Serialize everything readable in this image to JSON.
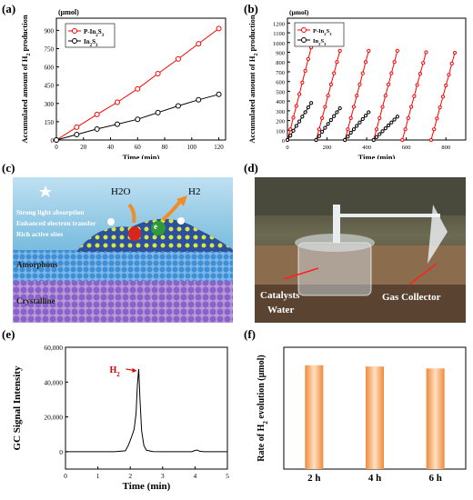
{
  "panels": {
    "a": "(a)",
    "b": "(b)",
    "c": "(c)",
    "d": "(d)",
    "e": "(e)",
    "f": "(f)"
  },
  "chart_data": [
    {
      "id": "a",
      "type": "line",
      "unit": "(μmol)",
      "xlabel": "Time (min)",
      "ylabel": "Accumulated amount of H2 production",
      "xlim": [
        0,
        125
      ],
      "ylim": [
        0,
        1000
      ],
      "xticks": [
        0,
        20,
        40,
        60,
        80,
        100,
        120
      ],
      "yticks": [
        0,
        150,
        300,
        450,
        600,
        750,
        900
      ],
      "legend_position": "top-left",
      "series": [
        {
          "name": "P-In2S3",
          "color": "#ff0000",
          "marker": "circle-open",
          "x": [
            0,
            15,
            30,
            45,
            60,
            75,
            90,
            105,
            120
          ],
          "y": [
            0,
            105,
            210,
            310,
            420,
            545,
            665,
            790,
            915
          ]
        },
        {
          "name": "In2S3",
          "color": "#000000",
          "marker": "circle-open",
          "x": [
            0,
            15,
            30,
            45,
            60,
            75,
            90,
            105,
            120
          ],
          "y": [
            0,
            45,
            90,
            130,
            170,
            225,
            280,
            330,
            375
          ]
        }
      ]
    },
    {
      "id": "b",
      "type": "line",
      "unit": "(μmol)",
      "xlabel": "Time (min)",
      "ylabel": "Accumulated amount of H2 production",
      "xlim": [
        0,
        900
      ],
      "ylim": [
        0,
        1250
      ],
      "xticks": [
        0,
        200,
        400,
        600,
        800
      ],
      "yticks": [
        0,
        100,
        200,
        300,
        400,
        500,
        600,
        700,
        800,
        900,
        1000,
        1100,
        1200
      ],
      "legend_position": "top-left",
      "series": [
        {
          "name": "P-In2S3",
          "color": "#ff0000",
          "cycles": [
            {
              "x": [
                0,
                15,
                30,
                45,
                60,
                75,
                90,
                105,
                120
              ],
              "y": [
                0,
                110,
                230,
                350,
                470,
                590,
                710,
                830,
                950
              ]
            },
            {
              "x": [
                145,
                160,
                175,
                190,
                205,
                220,
                235,
                250,
                265
              ],
              "y": [
                0,
                110,
                225,
                340,
                455,
                570,
                685,
                800,
                915
              ]
            },
            {
              "x": [
                290,
                305,
                320,
                335,
                350,
                365,
                380,
                395,
                410
              ],
              "y": [
                0,
                110,
                225,
                340,
                455,
                570,
                685,
                800,
                915
              ]
            },
            {
              "x": [
                435,
                450,
                465,
                480,
                495,
                510,
                525,
                540,
                555
              ],
              "y": [
                0,
                110,
                225,
                340,
                455,
                570,
                685,
                800,
                915
              ]
            },
            {
              "x": [
                580,
                595,
                610,
                625,
                640,
                655,
                670,
                685,
                700
              ],
              "y": [
                0,
                110,
                225,
                340,
                450,
                565,
                680,
                790,
                900
              ]
            },
            {
              "x": [
                725,
                740,
                755,
                770,
                785,
                800,
                815,
                830,
                845
              ],
              "y": [
                0,
                110,
                220,
                335,
                445,
                560,
                670,
                785,
                895
              ]
            }
          ]
        },
        {
          "name": "In2S3",
          "color": "#000000",
          "cycles": [
            {
              "x": [
                0,
                15,
                30,
                45,
                60,
                75,
                90,
                105,
                120
              ],
              "y": [
                0,
                45,
                95,
                145,
                190,
                240,
                285,
                335,
                380
              ]
            },
            {
              "x": [
                145,
                160,
                175,
                190,
                205,
                220,
                235,
                250,
                265
              ],
              "y": [
                0,
                40,
                85,
                125,
                165,
                205,
                245,
                285,
                325
              ]
            },
            {
              "x": [
                290,
                305,
                320,
                335,
                350,
                365,
                380,
                395,
                410
              ],
              "y": [
                0,
                35,
                75,
                110,
                145,
                180,
                215,
                250,
                285
              ]
            },
            {
              "x": [
                435,
                450,
                465,
                480,
                495,
                510,
                525,
                540,
                555
              ],
              "y": [
                0,
                30,
                60,
                90,
                120,
                150,
                180,
                210,
                240
              ]
            }
          ]
        }
      ]
    },
    {
      "id": "e",
      "type": "line",
      "xlabel": "Time (min)",
      "ylabel": "GC Signal Intensity",
      "xlim": [
        0,
        5
      ],
      "ylim": [
        -10000,
        60000
      ],
      "xticks": [
        0,
        1,
        2,
        3,
        4,
        5
      ],
      "yticks": [
        0,
        20000,
        40000,
        60000
      ],
      "ytick_labels": [
        "0",
        "20,000",
        "40,000",
        "60,000"
      ],
      "annotation": "H2",
      "series": [
        {
          "name": "",
          "color": "#000000",
          "x": [
            0,
            1.5,
            1.85,
            1.95,
            2.05,
            2.12,
            2.18,
            2.22,
            2.26,
            2.3,
            2.35,
            2.42,
            2.5,
            2.7,
            3.0,
            3.9,
            4.0,
            4.08,
            4.15,
            4.3,
            5.0
          ],
          "y": [
            0,
            0,
            500,
            4000,
            9000,
            13000,
            22000,
            38000,
            47500,
            30000,
            12000,
            3500,
            800,
            100,
            0,
            0,
            700,
            900,
            200,
            0,
            0
          ]
        }
      ]
    },
    {
      "id": "f",
      "type": "bar",
      "ylabel": "Rate of H2 evolution (μmol)",
      "categories": [
        "2 h",
        "4 h",
        "6 h"
      ],
      "values": [
        810,
        800,
        785
      ],
      "ylim": [
        0,
        950
      ],
      "color": "#f5a05a"
    }
  ],
  "illustration_c": {
    "labels": [
      "Strong light absorption",
      "Enhanced electron transfer",
      "Rich active sites"
    ],
    "h2o": "H2O",
    "h2": "H2",
    "electron": "e",
    "amorphous": "Amorphous",
    "crystalline": "Crystalline"
  },
  "photo_d": {
    "catalysts": "Catalysts",
    "water": "Water",
    "collector": "Gas Collector"
  }
}
